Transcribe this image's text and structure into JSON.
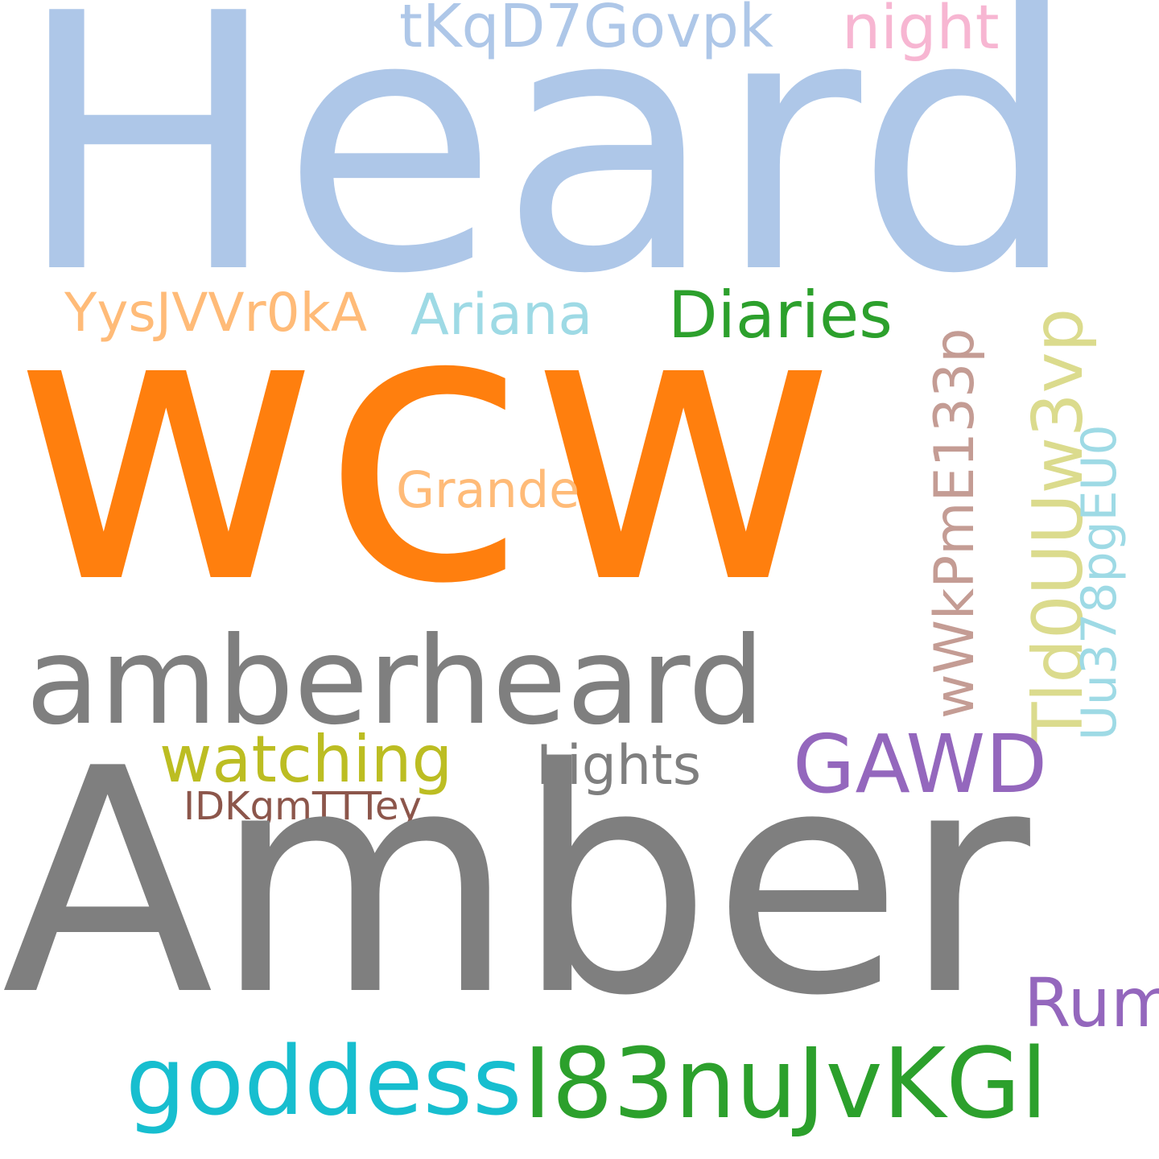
{
  "words": {
    "heard": {
      "text": "Heard",
      "color": "#aec7e8"
    },
    "wcw": {
      "text": "wcw",
      "color": "#ff7f0e"
    },
    "amber": {
      "text": "Amber",
      "color": "#7f7f7f"
    },
    "amberheard": {
      "text": "amberheard",
      "color": "#7f7f7f"
    },
    "tkqd7govpk": {
      "text": "tKqD7Govpk",
      "color": "#aec7e8"
    },
    "night": {
      "text": "night",
      "color": "#f7b6d2"
    },
    "yysjvvr0ka": {
      "text": "YysJVVr0kA",
      "color": "#ffbb78"
    },
    "ariana": {
      "text": "Ariana",
      "color": "#9edae5"
    },
    "diaries": {
      "text": "Diaries",
      "color": "#2ca02c"
    },
    "grande": {
      "text": "Grande",
      "color": "#ffbb78"
    },
    "wwkpme133p": {
      "text": "wWkPmE133p",
      "color": "#c49c94"
    },
    "tld0uuw3vp": {
      "text": "Tld0UUw3vp",
      "color": "#dbdb8d"
    },
    "uu378pgeu0": {
      "text": "Uu378pgEU0",
      "color": "#9edae5"
    },
    "gawd": {
      "text": "GAWD",
      "color": "#9467bd"
    },
    "watching": {
      "text": "watching",
      "color": "#bcbd22"
    },
    "lights": {
      "text": "Lights",
      "color": "#7f7f7f"
    },
    "idkgmttey": {
      "text": "IDKgmTTTey",
      "color": "#8c564b"
    },
    "rum": {
      "text": "Rum",
      "color": "#9467bd"
    },
    "goddess": {
      "text": "goddess",
      "color": "#17becf"
    },
    "i83nujvkgl": {
      "text": "I83nuJvKGl",
      "color": "#2ca02c"
    }
  }
}
